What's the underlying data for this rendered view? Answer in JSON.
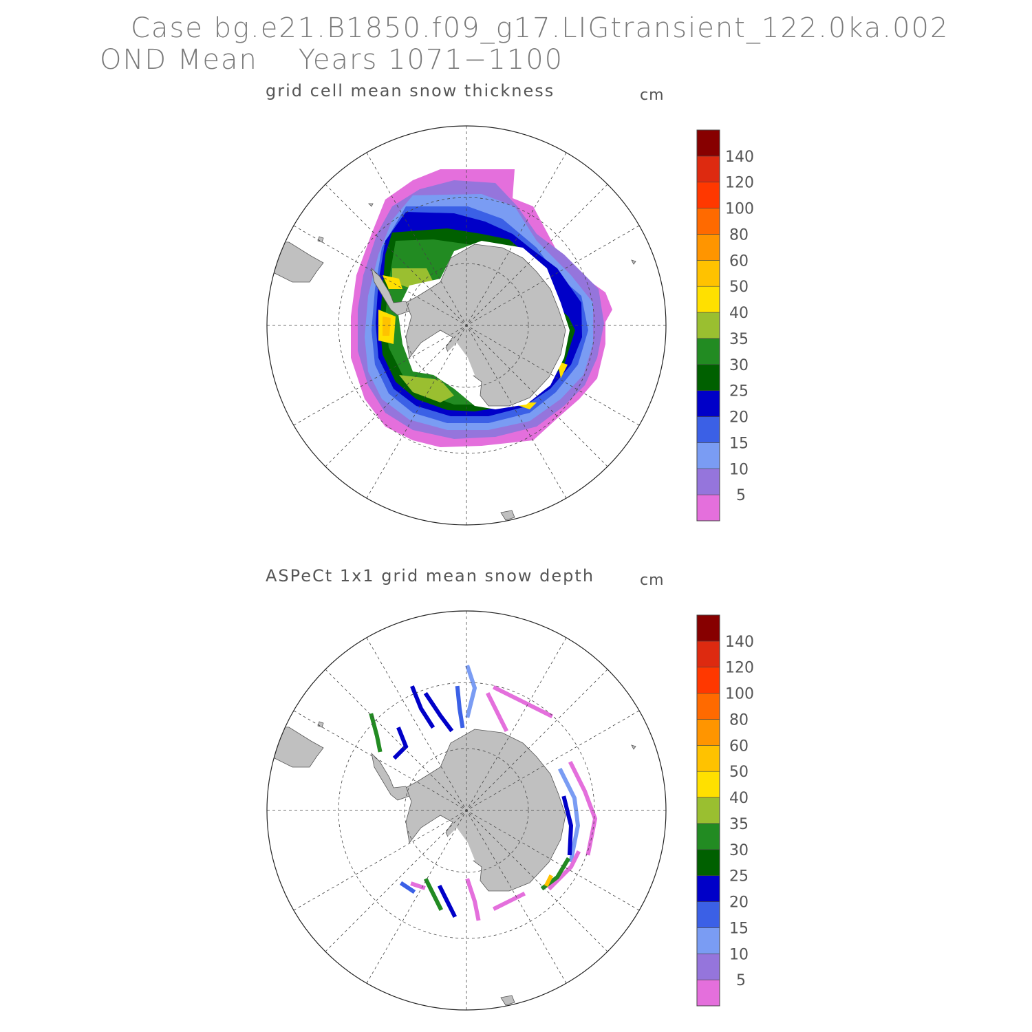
{
  "header": {
    "case_line": "Case bg.e21.B1850.f09_g17.LIGtransient_122.0ka.002",
    "period_line": "OND Mean    Years 1071−1100"
  },
  "panels": [
    {
      "id": "model",
      "title": "grid cell mean snow thickness",
      "unit": "cm"
    },
    {
      "id": "obs",
      "title": "ASPeCt 1x1 grid mean snow depth",
      "unit": "cm"
    }
  ],
  "colorbar": {
    "colors": [
      "#e46fdc",
      "#9575dc",
      "#7a9cf3",
      "#3b60e6",
      "#0000c8",
      "#006000",
      "#228b22",
      "#9abf30",
      "#ffe000",
      "#ffc200",
      "#ff9500",
      "#ff6a00",
      "#ff3800",
      "#dd2a10",
      "#870000"
    ],
    "labels": [
      "5",
      "10",
      "15",
      "20",
      "25",
      "30",
      "35",
      "40",
      "50",
      "60",
      "80",
      "100",
      "120",
      "140"
    ]
  },
  "colors": {
    "land": "#c0c0c0",
    "frame": "#222222",
    "grid": "#444444"
  }
}
